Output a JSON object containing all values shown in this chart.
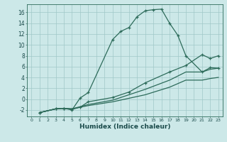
{
  "xlabel": "Humidex (Indice chaleur)",
  "bg_color": "#cce8e8",
  "line_color": "#2d6b5a",
  "grid_color": "#a0c8c8",
  "xlim": [
    -0.5,
    23.5
  ],
  "ylim": [
    -3.2,
    17.5
  ],
  "xticks": [
    0,
    1,
    2,
    3,
    4,
    5,
    6,
    7,
    8,
    9,
    10,
    11,
    12,
    13,
    14,
    15,
    16,
    17,
    18,
    19,
    20,
    21,
    22,
    23
  ],
  "yticks": [
    -2,
    0,
    2,
    4,
    6,
    8,
    10,
    12,
    14,
    16
  ],
  "line1_x": [
    1,
    3,
    4,
    5,
    6,
    7,
    10,
    11,
    12,
    13,
    14,
    15,
    16,
    17,
    18,
    19,
    21,
    22,
    23
  ],
  "line1_y": [
    -2.5,
    -1.8,
    -1.7,
    -2.0,
    0.2,
    1.2,
    11.0,
    12.5,
    13.2,
    15.2,
    16.3,
    16.5,
    16.6,
    14.0,
    11.8,
    8.0,
    5.0,
    5.8,
    5.7
  ],
  "line2_x": [
    1,
    3,
    4,
    5,
    6,
    7,
    10,
    12,
    14,
    17,
    19,
    21,
    22,
    23
  ],
  "line2_y": [
    -2.5,
    -1.8,
    -1.7,
    -1.9,
    -1.5,
    -0.5,
    0.3,
    1.3,
    3.0,
    5.0,
    6.2,
    8.2,
    7.5,
    8.0
  ],
  "line3_x": [
    1,
    3,
    4,
    5,
    7,
    10,
    14,
    17,
    19,
    21,
    22,
    23
  ],
  "line3_y": [
    -2.5,
    -1.8,
    -1.7,
    -1.8,
    -1.0,
    -0.2,
    1.8,
    3.5,
    5.0,
    5.0,
    5.5,
    5.7
  ],
  "line4_x": [
    1,
    3,
    4,
    5,
    7,
    10,
    14,
    17,
    19,
    21,
    22,
    23
  ],
  "line4_y": [
    -2.5,
    -1.8,
    -1.7,
    -1.8,
    -1.2,
    -0.5,
    0.8,
    2.2,
    3.5,
    3.5,
    3.8,
    4.0
  ]
}
